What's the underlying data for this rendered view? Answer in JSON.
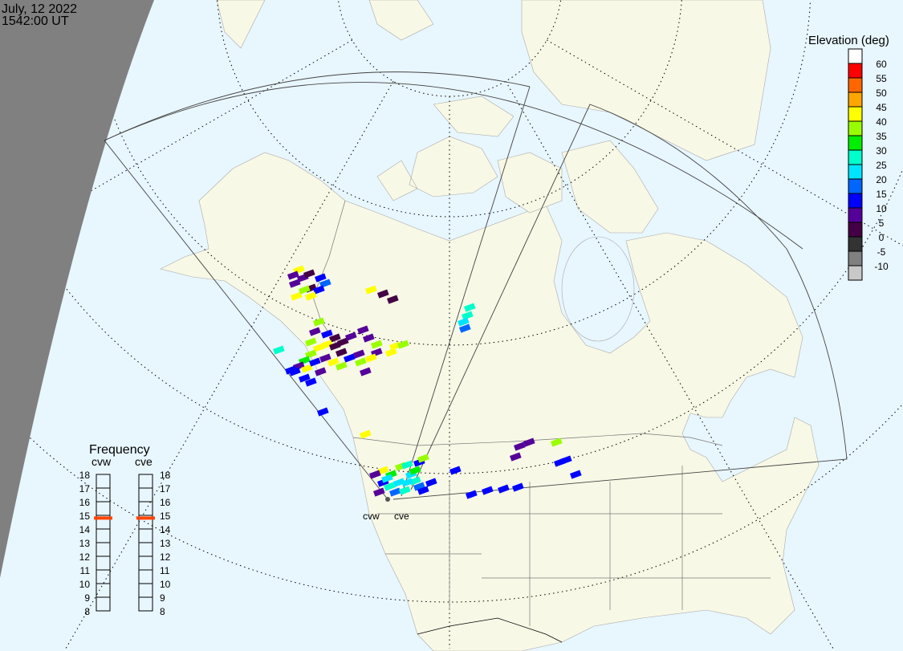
{
  "header": {
    "date": "July, 12 2022",
    "time": "1542:00 UT"
  },
  "radars": [
    {
      "code": "cvw"
    },
    {
      "code": "cve"
    }
  ],
  "legend": {
    "title": "Elevation (deg)",
    "colors": [
      "#ffffff",
      "#ff0000",
      "#ff6600",
      "#ffa500",
      "#ffff00",
      "#99ff00",
      "#00ee00",
      "#00ffcc",
      "#00e5ff",
      "#0066ff",
      "#0000ff",
      "#550099",
      "#440044",
      "#333333",
      "#808080",
      "#c8c8c8"
    ],
    "labels": [
      "60",
      "55",
      "50",
      "45",
      "40",
      "35",
      "30",
      "25",
      "20",
      "15",
      "10",
      "5",
      "0",
      "-5",
      "-10"
    ]
  },
  "frequency": {
    "title": "Frequency",
    "unit_range": [
      8,
      18
    ],
    "ticks": [
      "18",
      "17",
      "16",
      "15",
      "14",
      "13",
      "12",
      "11",
      "10",
      "9",
      "8"
    ],
    "cvw": {
      "label": "cvw",
      "value": 14.8
    },
    "cve": {
      "label": "cve",
      "value": 14.8
    },
    "marker_color": "#ff4400"
  },
  "colors": {
    "ocean": "#e8f6fe",
    "land": "#f8f8e6",
    "night": "#808080"
  }
}
